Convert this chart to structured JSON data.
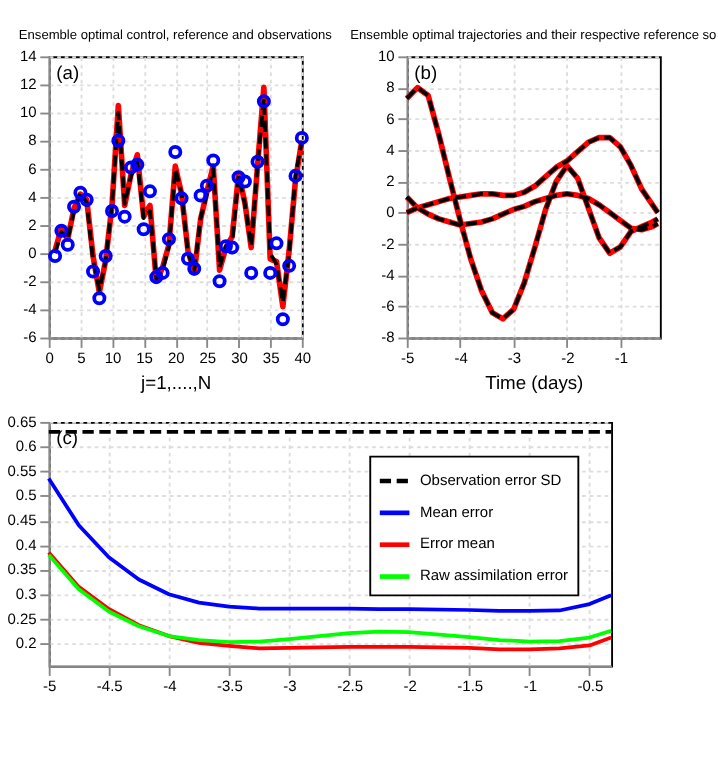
{
  "chart_data": [
    {
      "type": "line",
      "title": "Ensemble optimal control, reference and observations",
      "xlabel": "j=1,....,N",
      "annotations": [
        "(a)"
      ],
      "xlim": [
        0,
        40
      ],
      "xticks": [
        0,
        5,
        10,
        15,
        20,
        25,
        30,
        35,
        40
      ],
      "ylim": [
        -6,
        14
      ],
      "yticks": [
        -6,
        -4,
        -2,
        0,
        2,
        4,
        6,
        8,
        10,
        12,
        14
      ],
      "grid": true,
      "legend": false,
      "x": [
        1,
        2,
        3,
        4,
        5,
        6,
        7,
        8,
        9,
        10,
        11,
        12,
        13,
        14,
        15,
        16,
        17,
        18,
        19,
        20,
        21,
        22,
        23,
        24,
        25,
        26,
        27,
        28,
        29,
        30,
        31,
        32,
        33,
        34,
        35,
        36,
        37,
        38,
        39,
        40
      ],
      "series": [
        {
          "color": "#ff0000",
          "values": [
            0.2,
            1.8,
            1.0,
            3.2,
            4.2,
            3.8,
            -0.2,
            -2.8,
            -0.5,
            3.4,
            10.5,
            3.4,
            5.6,
            7.0,
            2.6,
            3.4,
            -2.0,
            -1.0,
            0.6,
            6.2,
            4.2,
            0.2,
            -1.4,
            2.4,
            4.4,
            6.2,
            -1.2,
            0.4,
            1.2,
            5.6,
            3.6,
            0.4,
            6.2,
            11.8,
            -0.4,
            -0.6,
            -3.8,
            0.2,
            5.2,
            8.0
          ]
        },
        {
          "color": "#000000",
          "line_style": "dashed",
          "values": [
            0.0,
            1.5,
            1.0,
            3.0,
            4.3,
            3.6,
            -0.5,
            -2.6,
            -0.5,
            3.5,
            10.0,
            3.5,
            5.5,
            6.5,
            2.5,
            3.0,
            -1.8,
            -1.2,
            0.5,
            6.0,
            4.2,
            0.0,
            -1.2,
            2.5,
            4.2,
            6.0,
            -1.0,
            0.5,
            0.8,
            5.5,
            3.5,
            0.5,
            6.3,
            11.0,
            0.0,
            -0.8,
            -3.5,
            0.0,
            5.5,
            8.0
          ]
        },
        {
          "type": "scatter",
          "marker": "circle",
          "color": "#0000ff",
          "values": [
            -0.2,
            1.6,
            0.6,
            3.3,
            4.3,
            3.8,
            -1.3,
            -3.2,
            -0.2,
            3.0,
            8.0,
            2.6,
            6.1,
            6.3,
            1.7,
            4.4,
            -1.7,
            -1.4,
            1.0,
            7.2,
            3.9,
            -0.4,
            -1.1,
            4.1,
            4.8,
            6.6,
            -2.0,
            0.5,
            0.4,
            5.4,
            5.1,
            -1.4,
            6.5,
            10.8,
            -1.4,
            0.7,
            -4.7,
            -0.9,
            5.5,
            8.2
          ]
        }
      ]
    },
    {
      "type": "line",
      "title": "Ensemble optimal trajectories and their respective reference so",
      "xlabel": "Time (days)",
      "annotations": [
        "(b)"
      ],
      "xlim": [
        -5,
        -0.26
      ],
      "xticks": [
        -5,
        -4,
        -3,
        -2,
        -1
      ],
      "ylim": [
        -8,
        10
      ],
      "yticks": [
        -8,
        -6,
        -4,
        -2,
        0,
        2,
        4,
        6,
        8,
        10
      ],
      "grid": true,
      "legend": false,
      "x": [
        -5,
        -4.8,
        -4.6,
        -4.4,
        -4.2,
        -4.0,
        -3.8,
        -3.6,
        -3.4,
        -3.2,
        -3.0,
        -2.8,
        -2.6,
        -2.4,
        -2.2,
        -2.0,
        -1.8,
        -1.6,
        -1.4,
        -1.2,
        -1.0,
        -0.8,
        -0.6,
        -0.4,
        -0.3
      ],
      "series": [
        {
          "color": "#ff0000",
          "values": [
            7.3,
            8.0,
            7.5,
            5.0,
            2.2,
            -0.5,
            -3.0,
            -5.0,
            -6.4,
            -6.8,
            -6.2,
            -4.5,
            -2.2,
            0.2,
            2.0,
            3.0,
            2.2,
            0.3,
            -1.6,
            -2.6,
            -2.2,
            -1.2,
            -0.9,
            -0.6,
            -0.4
          ]
        },
        {
          "color": "#ff0000",
          "values": [
            1.0,
            0.3,
            -0.1,
            -0.4,
            -0.6,
            -0.8,
            -0.7,
            -0.6,
            -0.4,
            -0.1,
            0.2,
            0.4,
            0.7,
            0.9,
            1.1,
            1.2,
            1.1,
            0.9,
            0.5,
            0.0,
            -0.5,
            -1.0,
            -1.1,
            -0.9,
            -0.7
          ]
        },
        {
          "color": "#ff0000",
          "values": [
            0.0,
            0.3,
            0.5,
            0.7,
            0.9,
            1.0,
            1.1,
            1.2,
            1.2,
            1.1,
            1.1,
            1.3,
            1.7,
            2.3,
            2.9,
            3.3,
            3.9,
            4.5,
            4.8,
            4.8,
            4.2,
            3.0,
            1.5,
            0.5,
            0.0
          ]
        },
        {
          "color": "#000000",
          "line_style": "dashed",
          "values": [
            7.3,
            8.0,
            7.5,
            5.0,
            2.2,
            -0.5,
            -3.0,
            -5.0,
            -6.4,
            -6.8,
            -6.2,
            -4.5,
            -2.2,
            0.2,
            2.0,
            3.0,
            2.2,
            0.3,
            -1.6,
            -2.6,
            -2.2,
            -1.2,
            -0.9,
            -0.6,
            -0.4
          ]
        },
        {
          "color": "#000000",
          "line_style": "dashed",
          "values": [
            1.0,
            0.3,
            -0.1,
            -0.4,
            -0.6,
            -0.8,
            -0.7,
            -0.6,
            -0.4,
            -0.1,
            0.2,
            0.4,
            0.7,
            0.9,
            1.1,
            1.2,
            1.1,
            0.9,
            0.5,
            0.0,
            -0.5,
            -1.0,
            -1.1,
            -0.9,
            -0.7
          ]
        },
        {
          "color": "#000000",
          "line_style": "dashed",
          "values": [
            0.0,
            0.3,
            0.5,
            0.7,
            0.9,
            1.0,
            1.1,
            1.2,
            1.2,
            1.1,
            1.1,
            1.3,
            1.7,
            2.3,
            2.9,
            3.3,
            3.9,
            4.5,
            4.8,
            4.8,
            4.2,
            3.0,
            1.5,
            0.5,
            0.0
          ]
        }
      ]
    },
    {
      "type": "line",
      "annotations": [
        "(c)"
      ],
      "xlim": [
        -5,
        -0.32
      ],
      "xticks": [
        -5,
        -4.5,
        -4,
        -3.5,
        -3,
        -2.5,
        -2,
        -1.5,
        -1,
        -0.5
      ],
      "ylim": [
        0.155,
        0.65
      ],
      "yticks": [
        0.2,
        0.25,
        0.3,
        0.35,
        0.4,
        0.45,
        0.5,
        0.55,
        0.6,
        0.65
      ],
      "grid": true,
      "legend": "top right",
      "x": [
        -5,
        -4.75,
        -4.5,
        -4.25,
        -4,
        -3.75,
        -3.5,
        -3.25,
        -3,
        -2.5,
        -2.25,
        -2,
        -1.5,
        -1.25,
        -1,
        -0.75,
        -0.5,
        -0.32
      ],
      "series": [
        {
          "name": "Observation error SD",
          "color": "#000000",
          "line_style": "dashed",
          "values": [
            0.63,
            0.63,
            0.63,
            0.63,
            0.63,
            0.63,
            0.63,
            0.63,
            0.63,
            0.63,
            0.63,
            0.63,
            0.63,
            0.63,
            0.63,
            0.63,
            0.63,
            0.63
          ]
        },
        {
          "name": "Mean error",
          "color": "#0000ff",
          "values": [
            0.535,
            0.44,
            0.375,
            0.33,
            0.3,
            0.283,
            0.275,
            0.271,
            0.271,
            0.271,
            0.27,
            0.27,
            0.268,
            0.266,
            0.266,
            0.267,
            0.28,
            0.298
          ]
        },
        {
          "name": "Error mean",
          "color": "#ff0000",
          "values": [
            0.385,
            0.315,
            0.27,
            0.237,
            0.215,
            0.201,
            0.195,
            0.19,
            0.191,
            0.193,
            0.193,
            0.193,
            0.191,
            0.188,
            0.188,
            0.19,
            0.196,
            0.212
          ]
        },
        {
          "name": "Raw assimilation error",
          "color": "#00ff00",
          "values": [
            0.38,
            0.31,
            0.265,
            0.235,
            0.215,
            0.207,
            0.203,
            0.204,
            0.209,
            0.221,
            0.224,
            0.223,
            0.213,
            0.207,
            0.204,
            0.205,
            0.212,
            0.226
          ]
        }
      ]
    }
  ]
}
